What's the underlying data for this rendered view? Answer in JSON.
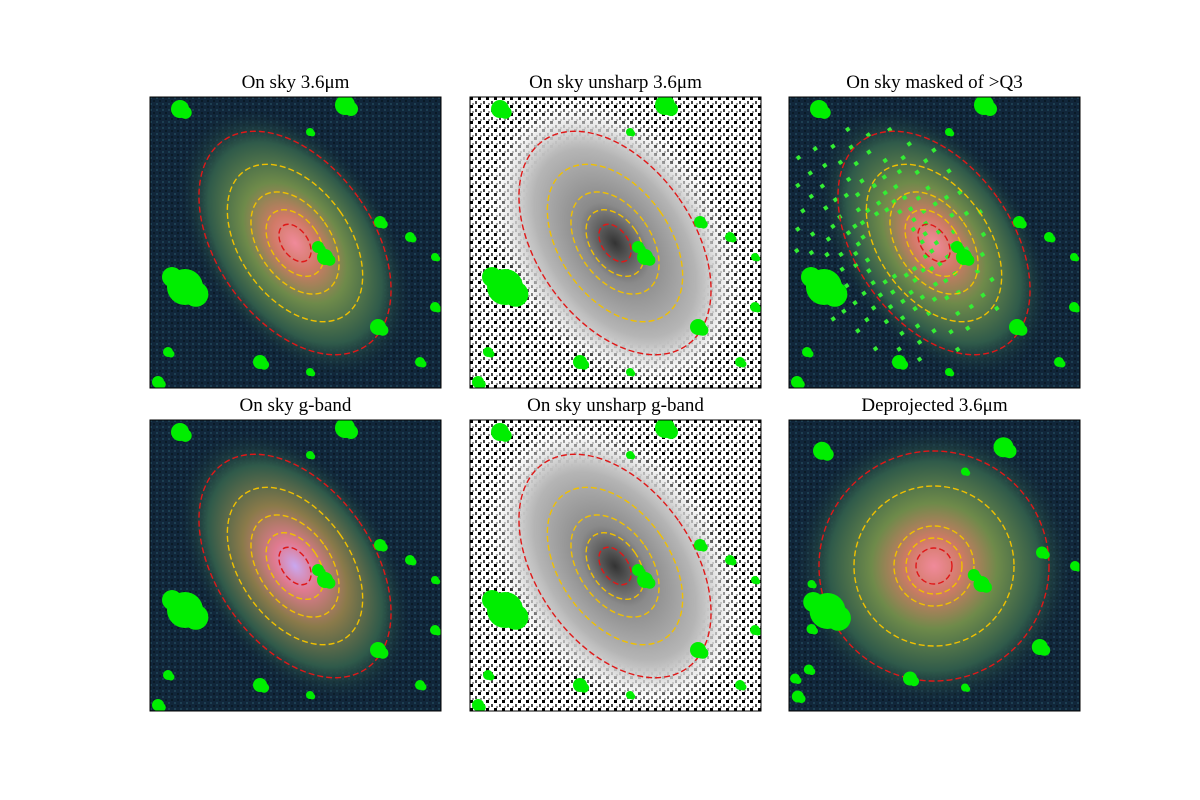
{
  "figure": {
    "panels": [
      {
        "title": "On sky 3.6μm"
      },
      {
        "title": "On sky unsharp 3.6μm"
      },
      {
        "title": "On sky masked of >Q3"
      },
      {
        "title": "On sky g-band"
      },
      {
        "title": "On sky unsharp g-band"
      },
      {
        "title": "Deprojected 3.6μm"
      }
    ]
  }
}
